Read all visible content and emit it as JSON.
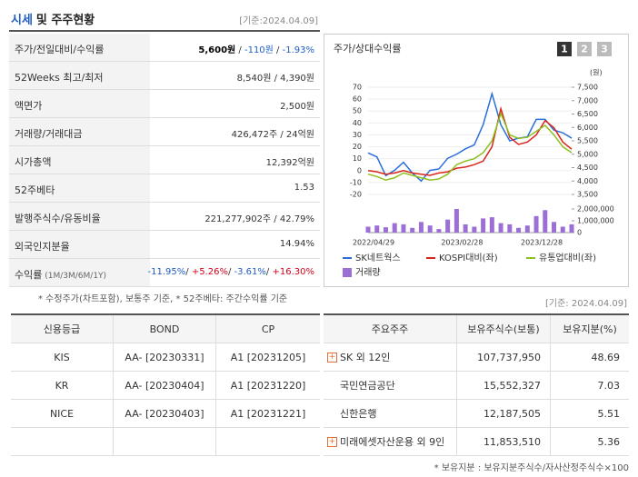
{
  "header": {
    "title": "시세",
    "title_suffix": "및 주주현황",
    "date": "[기준:2024.04.09]"
  },
  "summary": {
    "rows": [
      {
        "label": [
          "주가/전일대비/수익률"
        ],
        "parts": [
          {
            "text": "5,600원",
            "color": "#000",
            "bold": true
          },
          {
            "text": " / ",
            "color": "#333"
          },
          {
            "text": "-110원",
            "color": "#1f5cc4"
          },
          {
            "text": " / ",
            "color": "#333"
          },
          {
            "text": "-1.93%",
            "color": "#1f5cc4"
          }
        ]
      },
      {
        "label": [
          "52Weeks 최고/최저"
        ],
        "parts": [
          {
            "text": "8,540원 / 4,390원",
            "color": "#333"
          }
        ]
      },
      {
        "label": [
          "액면가"
        ],
        "parts": [
          {
            "text": "2,500원",
            "color": "#333"
          }
        ]
      },
      {
        "label": [
          "거래량/거래대금"
        ],
        "parts": [
          {
            "text": "426,472주 / 24억원",
            "color": "#333"
          }
        ]
      },
      {
        "label": [
          "시가총액"
        ],
        "parts": [
          {
            "text": "12,392억원",
            "color": "#333"
          }
        ]
      },
      {
        "label": [
          "52주베타"
        ],
        "parts": [
          {
            "text": "1.53",
            "color": "#333"
          }
        ]
      },
      {
        "label": [
          "발행주식수/유동비율"
        ],
        "parts": [
          {
            "text": "221,277,902주 / 42.79%",
            "color": "#333"
          }
        ]
      },
      {
        "label": [
          "외국인지분율"
        ],
        "parts": [
          {
            "text": "14.94%",
            "color": "#333"
          }
        ]
      },
      {
        "label": [
          "수익률",
          " (1M/3M/6M/1Y)"
        ],
        "parts": [
          {
            "text": "-11.95%",
            "color": "#1f5cc4"
          },
          {
            "text": "/ ",
            "color": "#333"
          },
          {
            "text": "+5.26%",
            "color": "#d0021b"
          },
          {
            "text": "/ ",
            "color": "#333"
          },
          {
            "text": "-3.61%",
            "color": "#1f5cc4"
          },
          {
            "text": "/ ",
            "color": "#333"
          },
          {
            "text": "+16.30%",
            "color": "#d0021b"
          }
        ]
      }
    ]
  },
  "chart_data": {
    "type": "line",
    "title": "주가/상대수익률",
    "tabs": [
      "1",
      "2",
      "3"
    ],
    "y2_unit": "(원)",
    "grid": true,
    "categories": [
      "2022/04/29",
      null,
      null,
      null,
      null,
      null,
      null,
      null,
      null,
      null,
      "2023/02/28",
      null,
      null,
      null,
      null,
      null,
      null,
      null,
      null,
      "2023/12/28",
      null,
      null,
      null,
      null
    ],
    "series": [
      {
        "name": "SK네트웍스",
        "color": "#2a6fdb",
        "axis": "y2",
        "values": [
          5050,
          4900,
          4200,
          4400,
          4700,
          4300,
          4000,
          4400,
          4450,
          4850,
          5000,
          5200,
          5350,
          6100,
          7260,
          6100,
          5500,
          5600,
          5650,
          6300,
          6300,
          5900,
          5800,
          5600
        ]
      },
      {
        "name": "KOSPI대비(좌)",
        "color": "#d9261c",
        "values": [
          0,
          -1,
          -3,
          -2,
          0,
          -2,
          -3,
          -4,
          -2,
          -1,
          2,
          3,
          5,
          8,
          20,
          52,
          28,
          22,
          24,
          30,
          42,
          36,
          24,
          18
        ]
      },
      {
        "name": "유통업대비(좌)",
        "color": "#8dbf1f",
        "values": [
          -3,
          -5,
          -8,
          -6,
          -2,
          -4,
          -6,
          -8,
          -7,
          -3,
          5,
          8,
          10,
          15,
          25,
          48,
          30,
          27,
          28,
          33,
          38,
          30,
          20,
          15
        ]
      },
      {
        "name": "거래량",
        "color": "#9b6fd6",
        "type": "bar",
        "axis": "y3",
        "values": [
          500000,
          600000,
          450000,
          800000,
          700000,
          400000,
          900000,
          600000,
          300000,
          1100000,
          2000000,
          700000,
          500000,
          1200000,
          1300000,
          800000,
          700000,
          400000,
          600000,
          1400000,
          1900000,
          900000,
          500000,
          700000
        ]
      }
    ],
    "ylim": [
      -20,
      70
    ],
    "yticks": [
      -20,
      -10,
      0,
      10,
      20,
      30,
      40,
      50,
      60,
      70
    ],
    "y2lim": [
      3500,
      7500
    ],
    "y2ticks": [
      {
        "value": 3500,
        "label": "3,500"
      },
      {
        "value": 4000,
        "label": "4,000"
      },
      {
        "value": 4500,
        "label": "4,500"
      },
      {
        "value": 5000,
        "label": "5,000"
      },
      {
        "value": 5500,
        "label": "5,500"
      },
      {
        "value": 6000,
        "label": "6,000"
      },
      {
        "value": 6500,
        "label": "6,500"
      },
      {
        "value": 7000,
        "label": "7,000"
      },
      {
        "value": 7500,
        "label": "7,500"
      }
    ],
    "y3lim": [
      0,
      2000000
    ],
    "y3ticks": [
      0,
      {
        "value": 1000000,
        "label": "1,000,000"
      },
      {
        "value": 2000000,
        "label": "2,000,000"
      }
    ]
  },
  "notes": {
    "summary": "* 수정주가(차트포함), 보통주 기준, * 52주베타: 주간수익률 기준",
    "date": "[기준: 2024.04.09]",
    "holders": "* 보유지분 : 보유지분주식수/자사산정주식수×100"
  },
  "credit": {
    "headers": [
      "신용등급",
      "BOND",
      "CP"
    ],
    "rows": [
      [
        "KIS",
        "AA- [20230331]",
        "A1 [20231205]"
      ],
      [
        "KR",
        "AA- [20230404]",
        "A1 [20231220]"
      ],
      [
        "NICE",
        "AA- [20230403]",
        "A1 [20231221]"
      ]
    ]
  },
  "holders": {
    "headers": [
      "주요주주",
      "보유주식수(보통)",
      "보유지분(%)"
    ],
    "expandable": [
      true,
      false,
      false,
      true
    ],
    "rows": [
      [
        "SK 외 12인",
        "107,737,950",
        "48.69"
      ],
      [
        "국민연금공단",
        "15,552,327",
        "7.03"
      ],
      [
        "신한은행",
        "12,187,505",
        "5.51"
      ],
      [
        "미래에셋자산운용 외 9인",
        "11,853,510",
        "5.36"
      ]
    ]
  }
}
